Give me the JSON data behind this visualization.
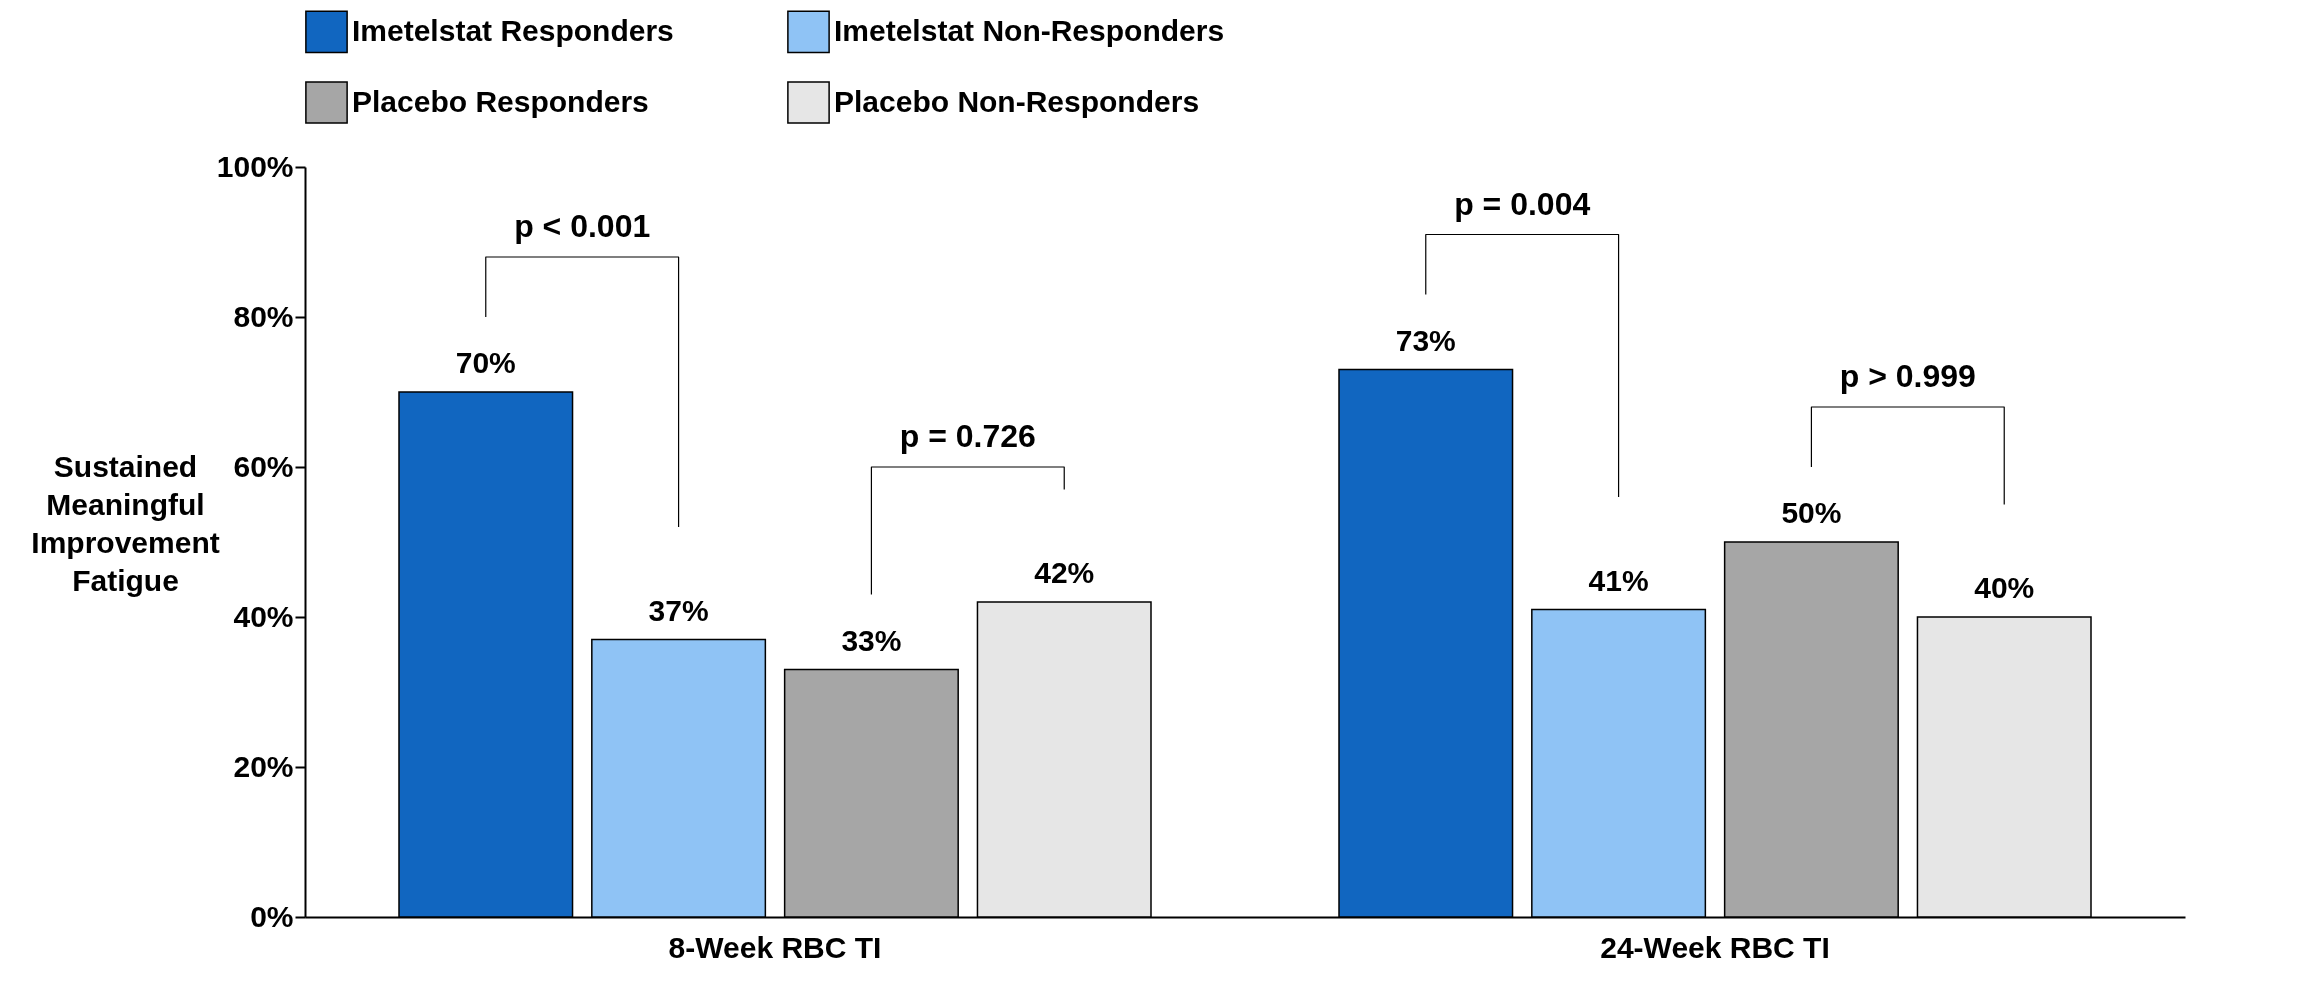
{
  "chart_data": {
    "type": "bar",
    "categories": [
      "8-Week RBC TI",
      "24-Week RBC TI"
    ],
    "ylabel": "Sustained Meaningful Improvement Fatigue",
    "series": [
      {
        "name": "Imetelstat Responders",
        "color": "#1166c0",
        "values": [
          70,
          73
        ],
        "value_labels": [
          "70%",
          "73%"
        ]
      },
      {
        "name": "Imetelstat Non-Responders",
        "color": "#8fc3f5",
        "values": [
          37,
          41
        ],
        "value_labels": [
          "37%",
          "41%"
        ]
      },
      {
        "name": "Placebo Responders",
        "color": "#a6a6a6",
        "values": [
          33,
          50
        ],
        "value_labels": [
          "33%",
          "50%"
        ]
      },
      {
        "name": "Placebo Non-Responders",
        "color": "#e6e6e6",
        "values": [
          42,
          40
        ],
        "value_labels": [
          "42%",
          "40%"
        ]
      }
    ],
    "ylim": [
      0,
      100
    ],
    "yticks": [
      {
        "value": 0,
        "label": "0%"
      },
      {
        "value": 20,
        "label": "20%"
      },
      {
        "value": 40,
        "label": "40%"
      },
      {
        "value": 60,
        "label": "60%"
      },
      {
        "value": 80,
        "label": "80%"
      },
      {
        "value": 100,
        "label": "100%"
      }
    ],
    "annotations": [
      "p < 0.001",
      "p = 0.726",
      "p = 0.004",
      "p > 0.999"
    ],
    "legend": "top",
    "grid": false
  }
}
